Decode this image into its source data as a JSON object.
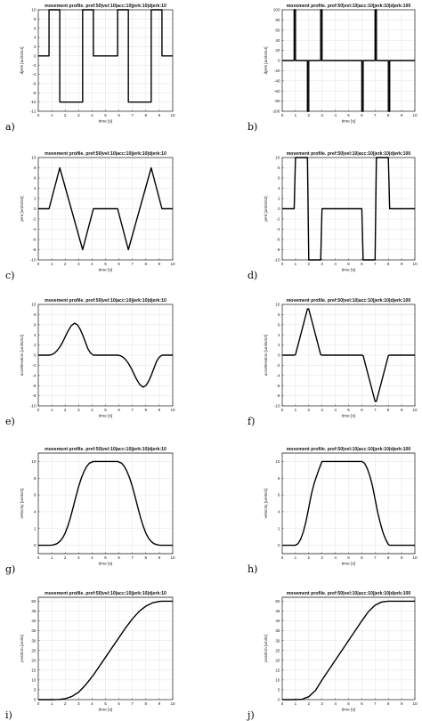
{
  "colors": {
    "line": "#000000",
    "grid": "#e2e2e2",
    "axis": "#262626",
    "background": "#ffffff"
  },
  "chart_data": [
    {
      "label": "a)",
      "type": "line",
      "title": "movement profile. pref:50|vel:10|acc:10|jerk:10|djerk:10",
      "xlabel": "time [s]",
      "ylabel": "djerk [units/s4]",
      "xlim": [
        0,
        10
      ],
      "ylim": [
        -12,
        10
      ],
      "xticks": [
        0,
        1,
        2,
        3,
        4,
        5,
        6,
        7,
        8,
        9,
        10
      ],
      "yticks": [
        -12,
        -10,
        -8,
        -6,
        -4,
        -2,
        0,
        2,
        4,
        6,
        8,
        10
      ],
      "grid": true,
      "series": [
        {
          "x": [
            0,
            0.8,
            0.8,
            1.6,
            1.6,
            3.3,
            3.3,
            4.1,
            4.1,
            5.9,
            5.9,
            6.7,
            6.7,
            8.4,
            8.4,
            9.2,
            9.2,
            10
          ],
          "y": [
            0,
            0,
            10,
            10,
            -10,
            -10,
            10,
            10,
            0,
            0,
            10,
            10,
            -10,
            -10,
            10,
            10,
            0,
            0
          ]
        }
      ]
    },
    {
      "label": "b)",
      "type": "line",
      "title": "movement profile. pref:50|vel:10|acc:10|jerk:10|djerk:100",
      "xlabel": "time [s]",
      "ylabel": "djerk [units/s4]",
      "xlim": [
        0,
        10
      ],
      "ylim": [
        -100,
        100
      ],
      "xticks": [
        0,
        1,
        2,
        3,
        4,
        5,
        6,
        7,
        8,
        9,
        10
      ],
      "yticks": [
        -100,
        -80,
        -60,
        -40,
        -20,
        0,
        20,
        40,
        60,
        80,
        100
      ],
      "grid": true,
      "series": [
        {
          "x": [
            0,
            0.9,
            0.9,
            1.0,
            1.0,
            1.9,
            1.9,
            2.0,
            2.0,
            2.9,
            2.9,
            3.0,
            3.0,
            6.0,
            6.0,
            6.1,
            6.1,
            7.0,
            7.0,
            7.1,
            7.1,
            8.0,
            8.0,
            8.1,
            8.1,
            10
          ],
          "y": [
            0,
            0,
            100,
            100,
            0,
            0,
            -100,
            -100,
            0,
            0,
            100,
            100,
            0,
            0,
            -100,
            -100,
            0,
            0,
            100,
            100,
            0,
            0,
            -100,
            -100,
            0,
            0
          ]
        }
      ]
    },
    {
      "label": "c)",
      "type": "line",
      "title": "movement profile. pref:50|vel:10|acc:10|jerk:10|djerk:10",
      "xlabel": "time [s]",
      "ylabel": "jerk [units/s3]",
      "xlim": [
        0,
        10
      ],
      "ylim": [
        -10,
        10
      ],
      "xticks": [
        0,
        1,
        2,
        3,
        4,
        5,
        6,
        7,
        8,
        9,
        10
      ],
      "yticks": [
        -10,
        -8,
        -6,
        -4,
        -2,
        0,
        2,
        4,
        6,
        8,
        10
      ],
      "grid": true,
      "series": [
        {
          "x": [
            0,
            0.8,
            1.6,
            3.3,
            4.1,
            5.9,
            6.7,
            8.4,
            9.2,
            10
          ],
          "y": [
            0,
            0,
            8,
            -8,
            0,
            0,
            -8,
            8,
            0,
            0
          ]
        }
      ]
    },
    {
      "label": "d)",
      "type": "line",
      "title": "movement profile. pref:50|vel:10|acc:10|jerk:10|djerk:100",
      "xlabel": "time [s]",
      "ylabel": "jerk [units/s3]",
      "xlim": [
        0,
        10
      ],
      "ylim": [
        -10,
        10
      ],
      "xticks": [
        0,
        1,
        2,
        3,
        4,
        5,
        6,
        7,
        8,
        9,
        10
      ],
      "yticks": [
        -10,
        -8,
        -6,
        -4,
        -2,
        0,
        2,
        4,
        6,
        8,
        10
      ],
      "grid": true,
      "series": [
        {
          "x": [
            0,
            0.9,
            1.0,
            1.9,
            2.0,
            2.9,
            3.0,
            6.0,
            6.1,
            7.0,
            7.1,
            8.0,
            8.1,
            10
          ],
          "y": [
            0,
            0,
            10,
            10,
            -10,
            -10,
            0,
            0,
            -10,
            -10,
            10,
            10,
            0,
            0
          ]
        }
      ]
    },
    {
      "label": "e)",
      "type": "line",
      "title": "movement profile. pref:50|vel:10|acc:10|jerk:10|djerk:10",
      "xlabel": "time [s]",
      "ylabel": "acceleration [units/s2]",
      "xlim": [
        0,
        10
      ],
      "ylim": [
        -10,
        10
      ],
      "xticks": [
        0,
        1,
        2,
        3,
        4,
        5,
        6,
        7,
        8,
        9,
        10
      ],
      "yticks": [
        -10,
        -8,
        -6,
        -4,
        -2,
        0,
        2,
        4,
        6,
        8,
        10
      ],
      "grid": true,
      "series": [
        {
          "x": [
            0,
            0.8,
            1.0,
            1.2,
            1.4,
            1.6,
            1.8,
            2.0,
            2.2,
            2.45,
            2.7,
            2.9,
            3.1,
            3.3,
            3.5,
            3.7,
            3.9,
            4.1,
            5.9,
            6.1,
            6.3,
            6.5,
            6.7,
            6.9,
            7.1,
            7.3,
            7.55,
            7.8,
            8.0,
            8.2,
            8.4,
            8.6,
            8.8,
            9.0,
            9.2,
            10
          ],
          "y": [
            0,
            0,
            0.1,
            0.4,
            0.9,
            1.6,
            2.5,
            3.6,
            4.7,
            5.8,
            6.3,
            6.0,
            5.2,
            4.0,
            2.6,
            1.2,
            0.4,
            0,
            0,
            -0.1,
            -0.4,
            -0.9,
            -1.6,
            -2.5,
            -3.6,
            -4.7,
            -5.8,
            -6.3,
            -6.0,
            -5.2,
            -4.0,
            -2.6,
            -1.2,
            -0.4,
            0,
            0
          ]
        }
      ]
    },
    {
      "label": "f)",
      "type": "line",
      "title": "movement profile. pref:50|vel:10|acc:10|jerk:10|djerk:100",
      "xlabel": "time [s]",
      "ylabel": "acceleration [units/s2]",
      "xlim": [
        0,
        10
      ],
      "ylim": [
        -10,
        10
      ],
      "xticks": [
        0,
        1,
        2,
        3,
        4,
        5,
        6,
        7,
        8,
        9,
        10
      ],
      "yticks": [
        -10,
        -8,
        -6,
        -4,
        -2,
        0,
        2,
        4,
        6,
        8,
        10
      ],
      "grid": true,
      "series": [
        {
          "x": [
            0,
            0.9,
            1.0,
            1.9,
            2.0,
            2.9,
            3.0,
            6.0,
            6.1,
            7.0,
            7.1,
            8.0,
            8.1,
            10
          ],
          "y": [
            0,
            0,
            0.1,
            9.1,
            9.1,
            0.1,
            0,
            0,
            -0.1,
            -9.1,
            -9.1,
            -0.1,
            0,
            0
          ]
        }
      ]
    },
    {
      "label": "g)",
      "type": "line",
      "title": "movement profile. pref:50|vel:10|acc:10|jerk:10|djerk:10",
      "xlabel": "time [s]",
      "ylabel": "velocity [units/s]",
      "xlim": [
        0,
        10
      ],
      "ylim": [
        -1,
        11
      ],
      "xticks": [
        0,
        1,
        2,
        3,
        4,
        5,
        6,
        7,
        8,
        9,
        10
      ],
      "yticks": [
        0,
        2,
        4,
        6,
        8,
        10
      ],
      "grid": true,
      "series": [
        {
          "x": [
            0,
            0.8,
            1.0,
            1.2,
            1.4,
            1.6,
            1.8,
            2.0,
            2.2,
            2.4,
            2.6,
            2.8,
            3.0,
            3.2,
            3.4,
            3.6,
            3.8,
            4.1,
            5.9,
            6.2,
            6.4,
            6.6,
            6.8,
            7.0,
            7.2,
            7.4,
            7.6,
            7.8,
            8.0,
            8.2,
            8.4,
            8.6,
            8.8,
            9.0,
            9.2,
            10
          ],
          "y": [
            0,
            0,
            0.02,
            0.08,
            0.2,
            0.45,
            0.85,
            1.45,
            2.3,
            3.35,
            4.55,
            5.8,
            7.0,
            8.0,
            8.8,
            9.4,
            9.8,
            10,
            10,
            9.8,
            9.4,
            8.8,
            8.0,
            7.0,
            5.8,
            4.55,
            3.35,
            2.3,
            1.45,
            0.85,
            0.45,
            0.2,
            0.08,
            0.02,
            0,
            0
          ]
        }
      ]
    },
    {
      "label": "h)",
      "type": "line",
      "title": "movement profile. pref:50|vel:10|acc:10|jerk:10|djerk:100",
      "xlabel": "time [s]",
      "ylabel": "velocity [units/s]",
      "xlim": [
        0,
        10
      ],
      "ylim": [
        -1,
        11
      ],
      "xticks": [
        0,
        1,
        2,
        3,
        4,
        5,
        6,
        7,
        8,
        9,
        10
      ],
      "yticks": [
        0,
        2,
        4,
        6,
        8,
        10
      ],
      "grid": true,
      "series": [
        {
          "x": [
            0,
            0.9,
            1.0,
            1.2,
            1.4,
            1.6,
            1.8,
            2.0,
            2.2,
            2.4,
            2.6,
            2.8,
            3.0,
            6.0,
            6.2,
            6.4,
            6.6,
            6.8,
            7.0,
            7.2,
            7.4,
            7.6,
            7.8,
            8.0,
            8.1,
            10
          ],
          "y": [
            0,
            0,
            0.01,
            0.2,
            0.75,
            1.65,
            2.9,
            4.5,
            6.1,
            7.35,
            8.3,
            9.2,
            10,
            10,
            9.8,
            9.2,
            8.3,
            7.1,
            5.5,
            3.9,
            2.6,
            1.5,
            0.7,
            0.1,
            0,
            0
          ]
        }
      ]
    },
    {
      "label": "i)",
      "type": "line",
      "title": "movement profile. pref:50|vel:10|acc:10|jerk:10|djerk:10",
      "xlabel": "time [s]",
      "ylabel": "position [units]",
      "xlim": [
        0,
        10
      ],
      "ylim": [
        0,
        52
      ],
      "xticks": [
        0,
        1,
        2,
        3,
        4,
        5,
        6,
        7,
        8,
        9,
        10
      ],
      "yticks": [
        0,
        5,
        10,
        15,
        20,
        25,
        30,
        35,
        40,
        45,
        50
      ],
      "grid": true,
      "series": [
        {
          "x": [
            0,
            1.0,
            1.5,
            2.0,
            2.5,
            3.0,
            3.5,
            4.1,
            5.0,
            5.9,
            6.5,
            7.0,
            7.5,
            8.0,
            8.5,
            9.0,
            9.2,
            10
          ],
          "y": [
            0,
            0,
            0.1,
            0.5,
            1.6,
            3.8,
            7.3,
            12.5,
            21.5,
            30.5,
            36.5,
            41.0,
            44.8,
            47.5,
            49.2,
            49.9,
            50,
            50
          ]
        }
      ]
    },
    {
      "label": "j)",
      "type": "line",
      "title": "movement profile. pref:50|vel:10|acc:10|jerk:10|djerk:100",
      "xlabel": "time [s]",
      "ylabel": "position [units]",
      "xlim": [
        0,
        10
      ],
      "ylim": [
        0,
        52
      ],
      "xticks": [
        0,
        1,
        2,
        3,
        4,
        5,
        6,
        7,
        8,
        9,
        10
      ],
      "yticks": [
        0,
        5,
        10,
        15,
        20,
        25,
        30,
        35,
        40,
        45,
        50
      ],
      "grid": true,
      "series": [
        {
          "x": [
            0,
            1.0,
            1.5,
            2.0,
            2.5,
            3.0,
            4.0,
            5.0,
            6.0,
            6.5,
            7.0,
            7.5,
            8.0,
            8.1,
            10
          ],
          "y": [
            0,
            0,
            0.2,
            1.5,
            4.6,
            10.0,
            20.0,
            30.0,
            40.0,
            44.7,
            48.0,
            49.6,
            50,
            50,
            50
          ]
        }
      ]
    }
  ]
}
